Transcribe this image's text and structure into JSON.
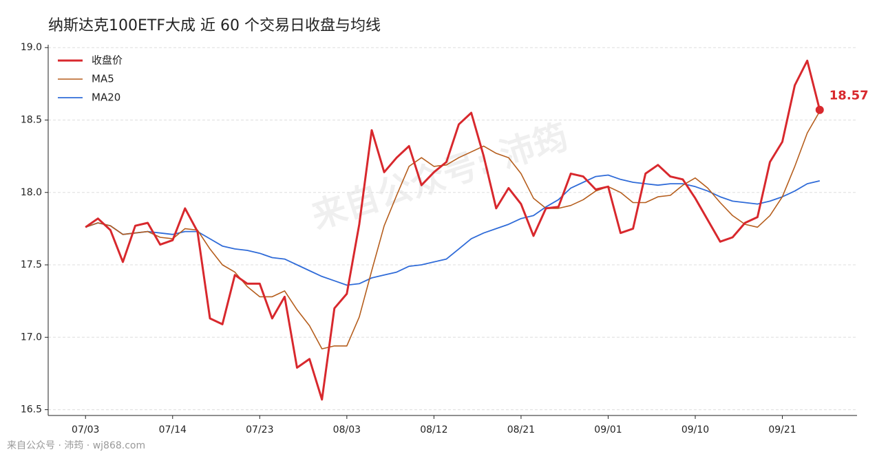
{
  "chart_data": {
    "type": "line",
    "title": "纳斯达克100ETF大成 近 60 个交易日收盘与均线",
    "watermark": "来自公众号: 沛筠",
    "footer": "来自公众号 · 沛筠 · wj868.com",
    "categories": [
      "07/03",
      null,
      null,
      null,
      null,
      null,
      null,
      "07/14",
      null,
      null,
      null,
      null,
      null,
      null,
      "07/23",
      null,
      null,
      null,
      null,
      null,
      null,
      "08/03",
      null,
      null,
      null,
      null,
      null,
      null,
      "08/12",
      null,
      null,
      null,
      null,
      null,
      null,
      "08/21",
      null,
      null,
      null,
      null,
      null,
      null,
      "09/01",
      null,
      null,
      null,
      null,
      null,
      null,
      "09/10",
      null,
      null,
      null,
      null,
      null,
      null,
      "09/21",
      null,
      null,
      null
    ],
    "series": [
      {
        "name": "收盘价",
        "color": "#d8282d",
        "width": 3,
        "values": [
          17.76,
          17.82,
          17.74,
          17.52,
          17.77,
          17.79,
          17.64,
          17.67,
          17.89,
          17.73,
          17.13,
          17.09,
          17.43,
          17.37,
          17.37,
          17.13,
          17.28,
          16.79,
          16.85,
          16.57,
          17.2,
          17.3,
          17.78,
          18.43,
          18.14,
          18.24,
          18.32,
          18.05,
          18.14,
          18.21,
          18.47,
          18.55,
          18.25,
          17.89,
          18.03,
          17.92,
          17.7,
          17.89,
          17.9,
          18.13,
          18.11,
          18.02,
          18.04,
          17.72,
          17.75,
          18.13,
          18.19,
          18.11,
          18.09,
          17.96,
          17.81,
          17.66,
          17.69,
          17.79,
          17.83,
          18.21,
          18.35,
          18.74,
          18.91,
          18.57
        ]
      },
      {
        "name": "MA5",
        "color": "#b55d1c",
        "width": 1.6,
        "values": [
          17.76,
          17.79,
          17.77,
          17.71,
          17.72,
          17.73,
          17.69,
          17.68,
          17.75,
          17.74,
          17.61,
          17.5,
          17.45,
          17.35,
          17.28,
          17.28,
          17.32,
          17.19,
          17.08,
          16.92,
          16.94,
          16.94,
          17.14,
          17.46,
          17.77,
          17.98,
          18.18,
          18.24,
          18.18,
          18.19,
          18.24,
          18.28,
          18.32,
          18.27,
          18.24,
          18.13,
          17.96,
          17.89,
          17.89,
          17.91,
          17.95,
          18.01,
          18.04,
          18.0,
          17.93,
          17.93,
          17.97,
          17.98,
          18.05,
          18.1,
          18.03,
          17.93,
          17.84,
          17.78,
          17.76,
          17.84,
          17.97,
          18.18,
          18.41,
          18.56
        ]
      },
      {
        "name": "MA20",
        "color": "#2f6bd8",
        "width": 1.8,
        "values": [
          17.76,
          17.79,
          17.77,
          17.71,
          17.72,
          17.73,
          17.72,
          17.71,
          17.73,
          17.73,
          17.68,
          17.63,
          17.61,
          17.6,
          17.58,
          17.55,
          17.54,
          17.5,
          17.46,
          17.42,
          17.39,
          17.36,
          17.37,
          17.41,
          17.43,
          17.45,
          17.49,
          17.5,
          17.52,
          17.54,
          17.61,
          17.68,
          17.72,
          17.75,
          17.78,
          17.82,
          17.84,
          17.9,
          17.95,
          18.03,
          18.07,
          18.11,
          18.12,
          18.09,
          18.07,
          18.06,
          18.05,
          18.06,
          18.06,
          18.04,
          18.01,
          17.97,
          17.94,
          17.93,
          17.92,
          17.94,
          17.97,
          18.01,
          18.06,
          18.08
        ]
      }
    ],
    "last_label": "18.57",
    "ylim": [
      16.46,
      19.02
    ],
    "yticks": [
      {
        "value": 16.5,
        "label": "16.5"
      },
      {
        "value": 17,
        "label": "17.0"
      },
      {
        "value": 17.5,
        "label": "17.5"
      },
      {
        "value": 18,
        "label": "18.0"
      },
      {
        "value": 18.5,
        "label": "18.5"
      },
      {
        "value": 19,
        "label": "19.0"
      }
    ],
    "grid": true,
    "legend": "upper left"
  }
}
